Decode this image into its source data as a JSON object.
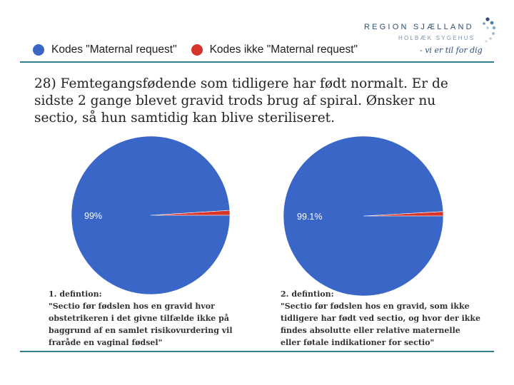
{
  "logo": {
    "name": "REGION SJÆLLAND",
    "subtitle": "HOLBÆK SYGEHUS",
    "tagline": "- vi er til for dig"
  },
  "legend": {
    "items": [
      {
        "label": "Kodes \"Maternal request\"",
        "color": "#3a66c8"
      },
      {
        "label": "Kodes ikke \"Maternal request\"",
        "color": "#d8352a"
      }
    ]
  },
  "heading": "28) Femtegangsfødende som tidligere har født normalt. Er de sidste 2 gange blevet gravid trods brug af spiral. Ønsker nu sectio, så hun samtidig kan blive steriliseret.",
  "chart_data": [
    {
      "type": "pie",
      "labels": [
        "Kodes \"Maternal request\"",
        "Kodes ikke \"Maternal request\""
      ],
      "values": [
        99,
        1
      ],
      "data_labels": [
        "99%",
        ""
      ],
      "colors": [
        "#3a66c8",
        "#d8352a"
      ]
    },
    {
      "type": "pie",
      "labels": [
        "Kodes \"Maternal request\"",
        "Kodes ikke \"Maternal request\""
      ],
      "values": [
        99.1,
        0.9
      ],
      "data_labels": [
        "99.1%",
        ""
      ],
      "colors": [
        "#3a66c8",
        "#d8352a"
      ]
    }
  ],
  "definitions": [
    {
      "title": "1. defintion:",
      "text": "\"Sectio før fødslen hos en gravid hvor\nobstetrikeren i det givne tilfælde ikke på\nbaggrund af en samlet risikovurdering vil\nfraråde en vaginal fødsel\""
    },
    {
      "title": "2. defintion:",
      "text": "\"Sectio før fødslen hos en gravid, som ikke\ntidligere har født ved sectio, og hvor der ikke\nfindes absolutte eller relative maternelle\neller føtale indikationer for sectio\""
    }
  ]
}
